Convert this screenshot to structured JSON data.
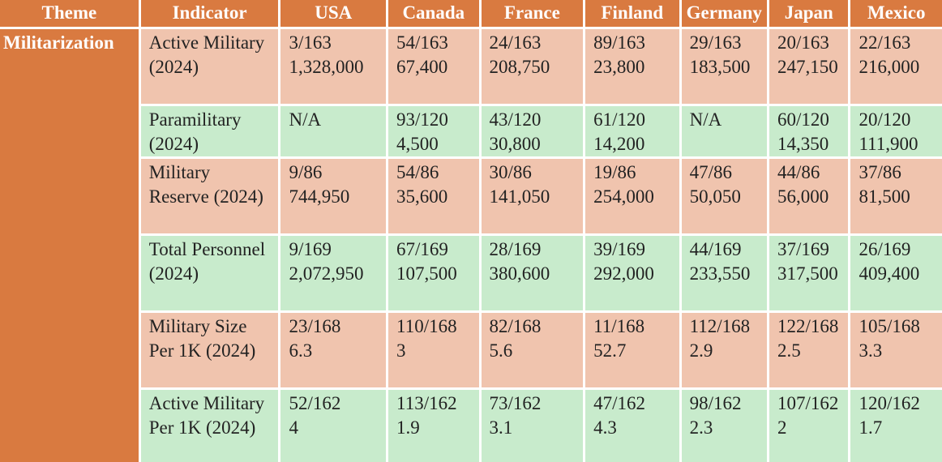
{
  "table": {
    "header": [
      "Theme",
      "Indicator",
      "USA",
      "Canada",
      "France",
      "Finland",
      "Germany",
      "Japan",
      "Mexico"
    ],
    "theme": "Militarization",
    "rows": [
      {
        "indicator": "Active Military (2024)",
        "cells": [
          [
            "3/163",
            "1,328,000"
          ],
          [
            "54/163",
            "67,400"
          ],
          [
            "24/163",
            "208,750"
          ],
          [
            "89/163",
            "23,800"
          ],
          [
            "29/163",
            "183,500"
          ],
          [
            "20/163",
            "247,150"
          ],
          [
            "22/163",
            "216,000"
          ]
        ]
      },
      {
        "indicator": "Paramilitary (2024)",
        "cells": [
          [
            "N/A"
          ],
          [
            "93/120",
            "4,500"
          ],
          [
            "43/120",
            "30,800"
          ],
          [
            "61/120",
            "14,200"
          ],
          [
            "N/A"
          ],
          [
            "60/120",
            "14,350"
          ],
          [
            "20/120",
            "111,900"
          ]
        ]
      },
      {
        "indicator": "Military Reserve (2024)",
        "cells": [
          [
            "9/86",
            "744,950"
          ],
          [
            "54/86",
            "35,600"
          ],
          [
            "30/86",
            "141,050"
          ],
          [
            "19/86",
            "254,000"
          ],
          [
            "47/86",
            "50,050"
          ],
          [
            "44/86",
            "56,000"
          ],
          [
            "37/86",
            "81,500"
          ]
        ]
      },
      {
        "indicator": "Total Personnel (2024)",
        "cells": [
          [
            "9/169",
            "2,072,950"
          ],
          [
            "67/169",
            "107,500"
          ],
          [
            "28/169",
            "380,600"
          ],
          [
            "39/169",
            "292,000"
          ],
          [
            "44/169",
            "233,550"
          ],
          [
            "37/169",
            "317,500"
          ],
          [
            "26/169",
            "409,400"
          ]
        ]
      },
      {
        "indicator": "Military Size Per 1K (2024)",
        "cells": [
          [
            "23/168",
            "6.3"
          ],
          [
            "110/168",
            "3"
          ],
          [
            "82/168",
            "5.6"
          ],
          [
            "11/168",
            "52.7"
          ],
          [
            "112/168",
            "2.9"
          ],
          [
            "122/168",
            "2.5"
          ],
          [
            "105/168",
            "3.3"
          ]
        ]
      },
      {
        "indicator": "Active Military Per 1K (2024)",
        "cells": [
          [
            "52/162",
            "4"
          ],
          [
            "113/162",
            "1.9"
          ],
          [
            "73/162",
            "3.1"
          ],
          [
            "47/162",
            "4.3"
          ],
          [
            "98/162",
            "2.3"
          ],
          [
            "107/162",
            "2"
          ],
          [
            "120/162",
            "1.7"
          ]
        ]
      }
    ]
  }
}
